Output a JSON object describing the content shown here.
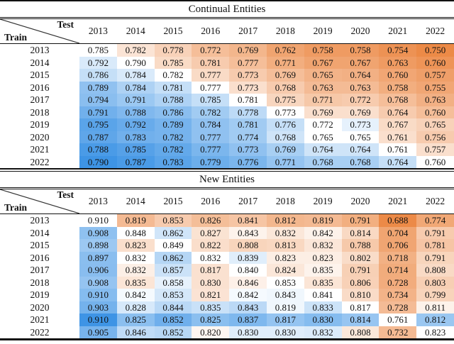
{
  "colors": {
    "positive_max": "#3e94e5",
    "negative_max": "#ec8a47",
    "neutral": "#ffffff",
    "text": "#111111",
    "rule": "#111111"
  },
  "tables": [
    {
      "title": "Continual Entities",
      "corner": {
        "test": "Test",
        "train": "Train"
      },
      "columns": [
        "2013",
        "2014",
        "2015",
        "2016",
        "2017",
        "2018",
        "2019",
        "2020",
        "2021",
        "2022"
      ],
      "rows": [
        {
          "label": "2013",
          "values": [
            0.785,
            0.782,
            0.778,
            0.772,
            0.769,
            0.762,
            0.758,
            0.758,
            0.754,
            0.75
          ]
        },
        {
          "label": "2014",
          "values": [
            0.792,
            0.79,
            0.785,
            0.781,
            0.777,
            0.771,
            0.767,
            0.767,
            0.763,
            0.76
          ]
        },
        {
          "label": "2015",
          "values": [
            0.786,
            0.784,
            0.782,
            0.777,
            0.773,
            0.769,
            0.765,
            0.764,
            0.76,
            0.757
          ]
        },
        {
          "label": "2016",
          "values": [
            0.789,
            0.784,
            0.781,
            0.777,
            0.773,
            0.768,
            0.763,
            0.763,
            0.758,
            0.755
          ]
        },
        {
          "label": "2017",
          "values": [
            0.794,
            0.791,
            0.788,
            0.785,
            0.781,
            0.775,
            0.771,
            0.772,
            0.768,
            0.763
          ]
        },
        {
          "label": "2018",
          "values": [
            0.791,
            0.788,
            0.786,
            0.782,
            0.778,
            0.773,
            0.769,
            0.769,
            0.764,
            0.76
          ]
        },
        {
          "label": "2019",
          "values": [
            0.795,
            0.792,
            0.789,
            0.784,
            0.781,
            0.776,
            0.772,
            0.773,
            0.767,
            0.765
          ]
        },
        {
          "label": "2020",
          "values": [
            0.787,
            0.783,
            0.782,
            0.777,
            0.774,
            0.768,
            0.765,
            0.765,
            0.761,
            0.756
          ]
        },
        {
          "label": "2021",
          "values": [
            0.788,
            0.785,
            0.782,
            0.777,
            0.773,
            0.769,
            0.764,
            0.764,
            0.761,
            0.757
          ]
        },
        {
          "label": "2022",
          "values": [
            0.79,
            0.787,
            0.783,
            0.779,
            0.776,
            0.771,
            0.768,
            0.768,
            0.764,
            0.76
          ]
        }
      ]
    },
    {
      "title": "New Entities",
      "corner": {
        "test": "Test",
        "train": "Train"
      },
      "columns": [
        "2013",
        "2014",
        "2015",
        "2016",
        "2017",
        "2018",
        "2019",
        "2020",
        "2021",
        "2022"
      ],
      "rows": [
        {
          "label": "2013",
          "values": [
            0.91,
            0.819,
            0.853,
            0.826,
            0.841,
            0.812,
            0.819,
            0.791,
            0.688,
            0.774
          ]
        },
        {
          "label": "2014",
          "values": [
            0.908,
            0.848,
            0.862,
            0.827,
            0.843,
            0.832,
            0.842,
            0.814,
            0.704,
            0.791
          ]
        },
        {
          "label": "2015",
          "values": [
            0.898,
            0.823,
            0.849,
            0.822,
            0.808,
            0.813,
            0.832,
            0.788,
            0.706,
            0.781
          ]
        },
        {
          "label": "2016",
          "values": [
            0.897,
            0.832,
            0.862,
            0.832,
            0.839,
            0.823,
            0.823,
            0.802,
            0.718,
            0.791
          ]
        },
        {
          "label": "2017",
          "values": [
            0.906,
            0.832,
            0.857,
            0.817,
            0.84,
            0.824,
            0.835,
            0.791,
            0.714,
            0.808
          ]
        },
        {
          "label": "2018",
          "values": [
            0.908,
            0.835,
            0.858,
            0.83,
            0.846,
            0.853,
            0.835,
            0.806,
            0.728,
            0.803
          ]
        },
        {
          "label": "2019",
          "values": [
            0.91,
            0.842,
            0.853,
            0.821,
            0.842,
            0.843,
            0.841,
            0.81,
            0.734,
            0.799
          ]
        },
        {
          "label": "2020",
          "values": [
            0.903,
            0.828,
            0.844,
            0.835,
            0.843,
            0.819,
            0.833,
            0.817,
            0.728,
            0.811
          ]
        },
        {
          "label": "2021",
          "values": [
            0.91,
            0.825,
            0.852,
            0.825,
            0.837,
            0.817,
            0.83,
            0.814,
            0.761,
            0.812
          ]
        },
        {
          "label": "2022",
          "values": [
            0.905,
            0.846,
            0.852,
            0.82,
            0.83,
            0.83,
            0.832,
            0.808,
            0.732,
            0.823
          ]
        }
      ]
    }
  ]
}
